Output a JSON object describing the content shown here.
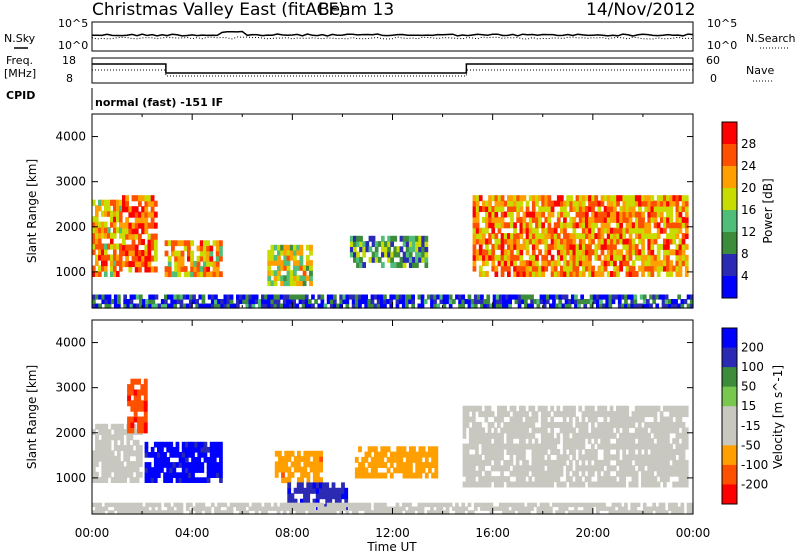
{
  "header": {
    "title": "Christmas Valley East (fitACF)",
    "beam": "Beam 13",
    "date": "14/Nov/2012"
  },
  "noise_panel": {
    "left_label": "N.Sky",
    "right_label": "N.Search",
    "left_ticks": [
      "10^5",
      "10^0"
    ],
    "right_ticks": [
      "10^5",
      "10^0"
    ]
  },
  "freq_panel": {
    "left_label_1": "Freq.",
    "left_label_2": "[MHz]",
    "right_label": "Nave",
    "left_ticks": [
      "18",
      "8"
    ],
    "right_ticks": [
      "60",
      "0"
    ]
  },
  "cpid": {
    "label": "CPID",
    "text": "normal (fast) -151 IF"
  },
  "x_axis": {
    "label": "Time UT",
    "tick_labels": [
      "00:00",
      "04:00",
      "08:00",
      "12:00",
      "16:00",
      "20:00",
      "00:00"
    ]
  },
  "colors": {
    "power_scale": [
      "#0000ff",
      "#2a2ab4",
      "#3c8c3c",
      "#50be78",
      "#c8dc00",
      "#ffa000",
      "#ff5000",
      "#ff0000"
    ],
    "velocity_scale": [
      "#ff0000",
      "#ff5000",
      "#ffa000",
      "#c8c8c0",
      "#c8c8c0",
      "#78c850",
      "#3c8c3c",
      "#2a2ab4",
      "#0000ff"
    ]
  },
  "chart_data": [
    {
      "type": "heatmap",
      "panel": "power",
      "ylabel": "Slant Range [km]",
      "xlabel": "Time UT",
      "xlim": [
        0,
        24
      ],
      "ylim": [
        200,
        4500
      ],
      "y_ticks": [
        1000,
        2000,
        3000,
        4000
      ],
      "colorbar": {
        "label": "Power [dB]",
        "ticks": [
          4,
          8,
          12,
          16,
          20,
          24,
          28
        ],
        "range": [
          0,
          32
        ]
      },
      "regions": [
        {
          "t0": 0.0,
          "t1": 1.2,
          "r0": 900,
          "r1": 2600,
          "value": 22
        },
        {
          "t0": 1.2,
          "t1": 2.6,
          "r0": 1000,
          "r1": 2700,
          "value": 25
        },
        {
          "t0": 2.9,
          "t1": 5.2,
          "r0": 900,
          "r1": 1700,
          "value": 22
        },
        {
          "t0": 7.0,
          "t1": 8.8,
          "r0": 700,
          "r1": 1600,
          "value": 18
        },
        {
          "t0": 10.3,
          "t1": 13.4,
          "r0": 1100,
          "r1": 1800,
          "value": 12
        },
        {
          "t0": 15.2,
          "t1": 23.8,
          "r0": 900,
          "r1": 2700,
          "value": 23
        },
        {
          "t0": 0.0,
          "t1": 24.0,
          "r0": 200,
          "r1": 500,
          "value": 6
        }
      ]
    },
    {
      "type": "heatmap",
      "panel": "velocity",
      "ylabel": "Slant Range [km]",
      "xlabel": "Time UT",
      "xlim": [
        0,
        24
      ],
      "ylim": [
        200,
        4500
      ],
      "y_ticks": [
        1000,
        2000,
        3000,
        4000
      ],
      "colorbar": {
        "label": "Velocity [m s^-1]",
        "ticks": [
          200,
          100,
          50,
          15,
          -15,
          -50,
          -100,
          -200
        ],
        "range": [
          -250,
          250
        ]
      },
      "regions": [
        {
          "t0": 0.0,
          "t1": 2.0,
          "r0": 900,
          "r1": 2200,
          "value": 0
        },
        {
          "t0": 1.4,
          "t1": 2.2,
          "r0": 2000,
          "r1": 3200,
          "value": -180
        },
        {
          "t0": 2.1,
          "t1": 5.2,
          "r0": 900,
          "r1": 1800,
          "value": 210
        },
        {
          "t0": 7.3,
          "t1": 9.2,
          "r0": 900,
          "r1": 1600,
          "value": -120
        },
        {
          "t0": 7.8,
          "t1": 10.2,
          "r0": 300,
          "r1": 900,
          "value": 180
        },
        {
          "t0": 10.5,
          "t1": 13.8,
          "r0": 1000,
          "r1": 1700,
          "value": -110
        },
        {
          "t0": 14.8,
          "t1": 23.8,
          "r0": 800,
          "r1": 2600,
          "value": 0
        },
        {
          "t0": 0.0,
          "t1": 24.0,
          "r0": 200,
          "r1": 450,
          "value": -60
        }
      ]
    }
  ]
}
